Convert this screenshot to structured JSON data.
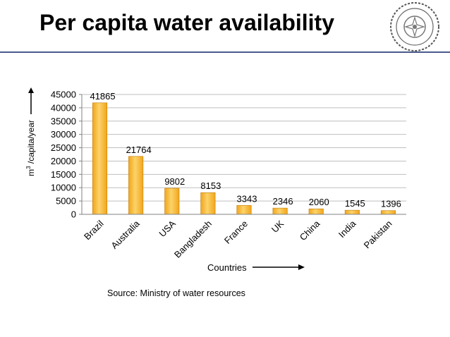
{
  "slide": {
    "title": "Per capita water availability",
    "source": "Source:  Ministry of  water resources",
    "logo_icon": "institute-seal-logo"
  },
  "colors": {
    "bar_fill": "#f2a51a",
    "bar_highlight": "#fcd36a",
    "bar_edge": "#c07d0a",
    "title_rule": "#4a5a8c",
    "grid": "#bfbfbf"
  },
  "chart_data": {
    "type": "bar",
    "categories": [
      "Brazil",
      "Australia",
      "USA",
      "Bangladesh",
      "France",
      "UK",
      "China",
      "India",
      "Pakistan"
    ],
    "values": [
      41865,
      21764,
      9802,
      8153,
      3343,
      2346,
      2060,
      1545,
      1396
    ],
    "data_labels": [
      "41865",
      "21764",
      "9802",
      "8153",
      "3343",
      "2346",
      "2060",
      "1545",
      "1396"
    ],
    "yticks": [
      "0",
      "5000",
      "10000",
      "15000",
      "20000",
      "25000",
      "30000",
      "35000",
      "40000",
      "45000"
    ],
    "ylim": [
      0,
      45000
    ],
    "xlabel": "Countries",
    "ylabel_prefix": "m",
    "ylabel_sup": "3",
    "ylabel_suffix": " /capita/year",
    "grid": true,
    "legend": "none"
  }
}
